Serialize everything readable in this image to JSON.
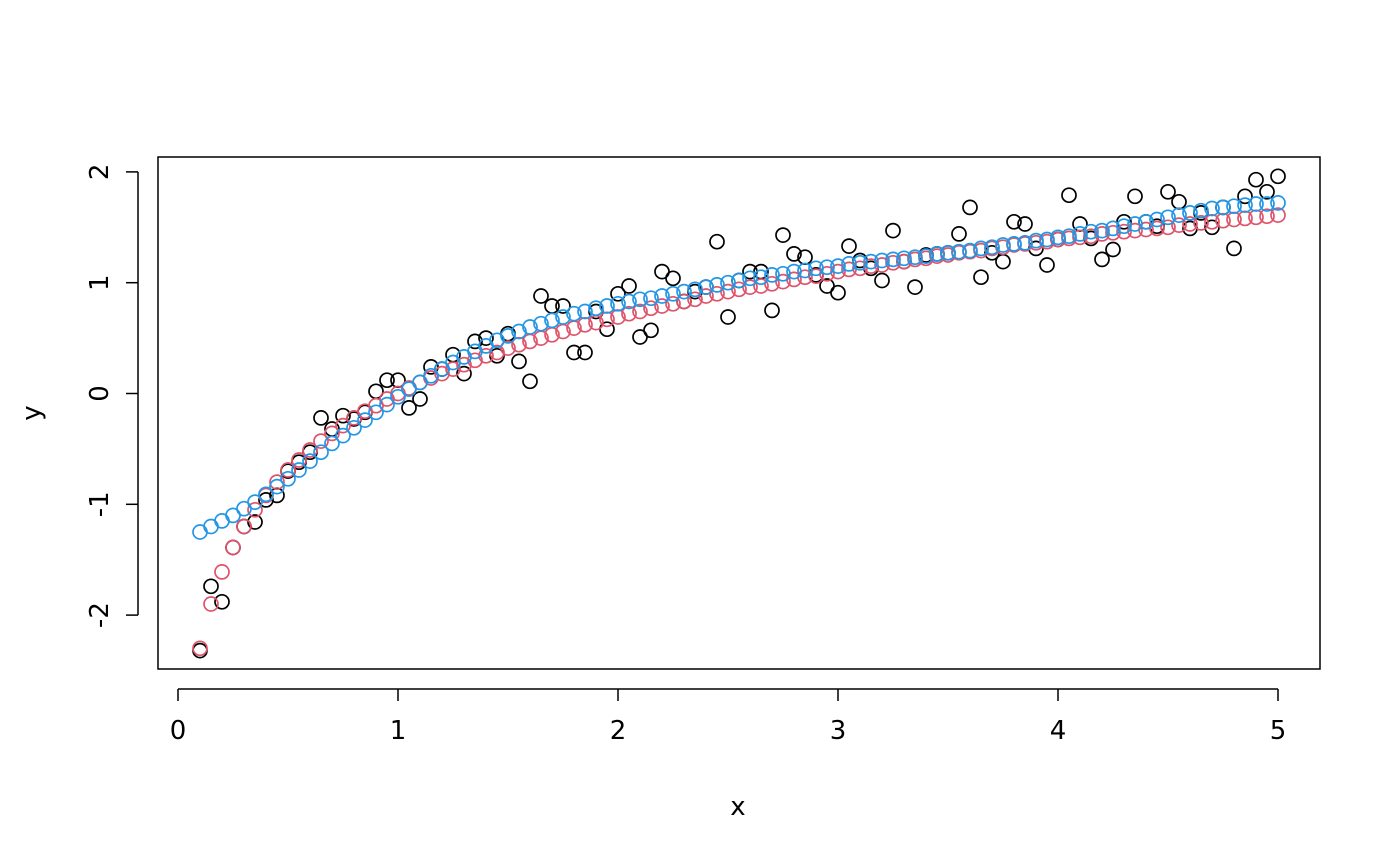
{
  "chart_data": {
    "type": "scatter",
    "title": "",
    "xlabel": "x",
    "ylabel": "y",
    "xlim": [
      -0.1,
      5.2
    ],
    "ylim": [
      -2.5,
      2.1
    ],
    "x_ticks": [
      0,
      1,
      2,
      3,
      4,
      5
    ],
    "x_tick_labels": [
      "0",
      "1",
      "2",
      "3",
      "4",
      "5"
    ],
    "y_ticks": [
      -2,
      -1,
      0,
      1,
      2
    ],
    "y_tick_labels": [
      "-2",
      "-1",
      "0",
      "1",
      "2"
    ],
    "grid": false,
    "legend": "none",
    "marker": "open-circle",
    "series": [
      {
        "color": "#000000",
        "x": [
          0.1,
          0.15,
          0.2,
          0.25,
          0.3,
          0.35,
          0.4,
          0.45,
          0.5,
          0.55,
          0.6,
          0.65,
          0.7,
          0.75,
          0.8,
          0.85,
          0.9,
          0.95,
          1.0,
          1.05,
          1.1,
          1.15,
          1.2,
          1.25,
          1.3,
          1.35,
          1.4,
          1.45,
          1.5,
          1.55,
          1.6,
          1.65,
          1.7,
          1.75,
          1.8,
          1.85,
          1.9,
          1.95,
          2.0,
          2.05,
          2.1,
          2.15,
          2.2,
          2.25,
          2.3,
          2.35,
          2.4,
          2.45,
          2.5,
          2.55,
          2.6,
          2.65,
          2.7,
          2.75,
          2.8,
          2.85,
          2.9,
          2.95,
          3.0,
          3.05,
          3.1,
          3.15,
          3.2,
          3.25,
          3.3,
          3.35,
          3.4,
          3.45,
          3.5,
          3.55,
          3.6,
          3.65,
          3.7,
          3.75,
          3.8,
          3.85,
          3.9,
          3.95,
          4.0,
          4.05,
          4.1,
          4.15,
          4.2,
          4.25,
          4.3,
          4.35,
          4.4,
          4.45,
          4.5,
          4.55,
          4.6,
          4.65,
          4.7,
          4.75,
          4.8,
          4.85,
          4.9,
          4.95,
          5.0
        ],
        "y": [
          -2.32,
          -1.74,
          -1.88,
          -1.39,
          -1.2,
          -1.16,
          -0.96,
          -0.92,
          -0.7,
          -0.62,
          -0.53,
          -0.22,
          -0.32,
          -0.2,
          -0.23,
          -0.17,
          0.02,
          0.12,
          0.12,
          -0.13,
          -0.05,
          0.24,
          0.22,
          0.35,
          0.18,
          0.47,
          0.5,
          0.34,
          0.54,
          0.29,
          0.11,
          0.88,
          0.79,
          0.79,
          0.37,
          0.37,
          0.74,
          0.58,
          0.9,
          0.97,
          0.51,
          0.57,
          1.1,
          1.04,
          0.83,
          0.92,
          0.96,
          1.37,
          0.69,
          1.02,
          1.1,
          1.1,
          0.75,
          1.43,
          1.26,
          1.23,
          1.07,
          0.97,
          0.91,
          1.33,
          1.2,
          1.13,
          1.02,
          1.47,
          1.19,
          0.96,
          1.25,
          1.26,
          1.27,
          1.44,
          1.68,
          1.05,
          1.27,
          1.19,
          1.55,
          1.53,
          1.31,
          1.16,
          1.39,
          1.79,
          1.53,
          1.4,
          1.21,
          1.3,
          1.55,
          1.78,
          1.55,
          1.51,
          1.82,
          1.73,
          1.49,
          1.63,
          1.5,
          1.68,
          1.31,
          1.78,
          1.93,
          1.82,
          1.96
        ]
      },
      {
        "color": "#df536b",
        "x": [
          0.1,
          0.15,
          0.2,
          0.25,
          0.3,
          0.35,
          0.4,
          0.45,
          0.5,
          0.55,
          0.6,
          0.65,
          0.7,
          0.75,
          0.8,
          0.85,
          0.9,
          0.95,
          1.0,
          1.05,
          1.1,
          1.15,
          1.2,
          1.25,
          1.3,
          1.35,
          1.4,
          1.45,
          1.5,
          1.55,
          1.6,
          1.65,
          1.7,
          1.75,
          1.8,
          1.85,
          1.9,
          1.95,
          2.0,
          2.05,
          2.1,
          2.15,
          2.2,
          2.25,
          2.3,
          2.35,
          2.4,
          2.45,
          2.5,
          2.55,
          2.6,
          2.65,
          2.7,
          2.75,
          2.8,
          2.85,
          2.9,
          2.95,
          3.0,
          3.05,
          3.1,
          3.15,
          3.2,
          3.25,
          3.3,
          3.35,
          3.4,
          3.45,
          3.5,
          3.55,
          3.6,
          3.65,
          3.7,
          3.75,
          3.8,
          3.85,
          3.9,
          3.95,
          4.0,
          4.05,
          4.1,
          4.15,
          4.2,
          4.25,
          4.3,
          4.35,
          4.4,
          4.45,
          4.5,
          4.55,
          4.6,
          4.65,
          4.7,
          4.75,
          4.8,
          4.85,
          4.9,
          4.95,
          5.0
        ],
        "y": [
          -2.3,
          -1.9,
          -1.61,
          -1.39,
          -1.2,
          -1.05,
          -0.92,
          -0.8,
          -0.69,
          -0.6,
          -0.51,
          -0.43,
          -0.36,
          -0.29,
          -0.22,
          -0.16,
          -0.11,
          -0.05,
          0.0,
          0.05,
          0.1,
          0.14,
          0.18,
          0.22,
          0.26,
          0.3,
          0.34,
          0.37,
          0.41,
          0.44,
          0.47,
          0.5,
          0.53,
          0.56,
          0.59,
          0.62,
          0.64,
          0.67,
          0.69,
          0.72,
          0.74,
          0.77,
          0.79,
          0.81,
          0.83,
          0.85,
          0.88,
          0.9,
          0.92,
          0.94,
          0.96,
          0.97,
          0.99,
          1.01,
          1.03,
          1.05,
          1.06,
          1.08,
          1.1,
          1.12,
          1.13,
          1.15,
          1.16,
          1.18,
          1.19,
          1.21,
          1.22,
          1.24,
          1.25,
          1.27,
          1.28,
          1.29,
          1.31,
          1.32,
          1.34,
          1.35,
          1.36,
          1.37,
          1.39,
          1.4,
          1.41,
          1.42,
          1.44,
          1.45,
          1.46,
          1.47,
          1.48,
          1.49,
          1.5,
          1.52,
          1.53,
          1.54,
          1.55,
          1.56,
          1.57,
          1.58,
          1.59,
          1.6,
          1.61
        ]
      },
      {
        "color": "#2297e6",
        "x": [
          0.1,
          0.15,
          0.2,
          0.25,
          0.3,
          0.35,
          0.4,
          0.45,
          0.5,
          0.55,
          0.6,
          0.65,
          0.7,
          0.75,
          0.8,
          0.85,
          0.9,
          0.95,
          1.0,
          1.05,
          1.1,
          1.15,
          1.2,
          1.25,
          1.3,
          1.35,
          1.4,
          1.45,
          1.5,
          1.55,
          1.6,
          1.65,
          1.7,
          1.75,
          1.8,
          1.85,
          1.9,
          1.95,
          2.0,
          2.05,
          2.1,
          2.15,
          2.2,
          2.25,
          2.3,
          2.35,
          2.4,
          2.45,
          2.5,
          2.55,
          2.6,
          2.65,
          2.7,
          2.75,
          2.8,
          2.85,
          2.9,
          2.95,
          3.0,
          3.05,
          3.1,
          3.15,
          3.2,
          3.25,
          3.3,
          3.35,
          3.4,
          3.45,
          3.5,
          3.55,
          3.6,
          3.65,
          3.7,
          3.75,
          3.8,
          3.85,
          3.9,
          3.95,
          4.0,
          4.05,
          4.1,
          4.15,
          4.2,
          4.25,
          4.3,
          4.35,
          4.4,
          4.45,
          4.5,
          4.55,
          4.6,
          4.65,
          4.7,
          4.75,
          4.8,
          4.85,
          4.9,
          4.95,
          5.0
        ],
        "y": [
          -1.25,
          -1.2,
          -1.15,
          -1.1,
          -1.04,
          -0.98,
          -0.91,
          -0.84,
          -0.77,
          -0.69,
          -0.61,
          -0.53,
          -0.45,
          -0.38,
          -0.31,
          -0.24,
          -0.17,
          -0.1,
          -0.03,
          0.04,
          0.1,
          0.16,
          0.22,
          0.28,
          0.33,
          0.38,
          0.43,
          0.48,
          0.52,
          0.56,
          0.6,
          0.63,
          0.66,
          0.69,
          0.72,
          0.74,
          0.77,
          0.79,
          0.81,
          0.83,
          0.85,
          0.86,
          0.88,
          0.9,
          0.92,
          0.94,
          0.96,
          0.98,
          1.0,
          1.02,
          1.04,
          1.05,
          1.07,
          1.08,
          1.1,
          1.11,
          1.13,
          1.14,
          1.15,
          1.17,
          1.18,
          1.19,
          1.2,
          1.21,
          1.22,
          1.23,
          1.24,
          1.26,
          1.27,
          1.28,
          1.29,
          1.31,
          1.32,
          1.34,
          1.35,
          1.36,
          1.38,
          1.39,
          1.41,
          1.42,
          1.44,
          1.46,
          1.47,
          1.49,
          1.51,
          1.53,
          1.55,
          1.57,
          1.59,
          1.61,
          1.63,
          1.65,
          1.67,
          1.68,
          1.69,
          1.7,
          1.71,
          1.71,
          1.72
        ]
      }
    ]
  }
}
